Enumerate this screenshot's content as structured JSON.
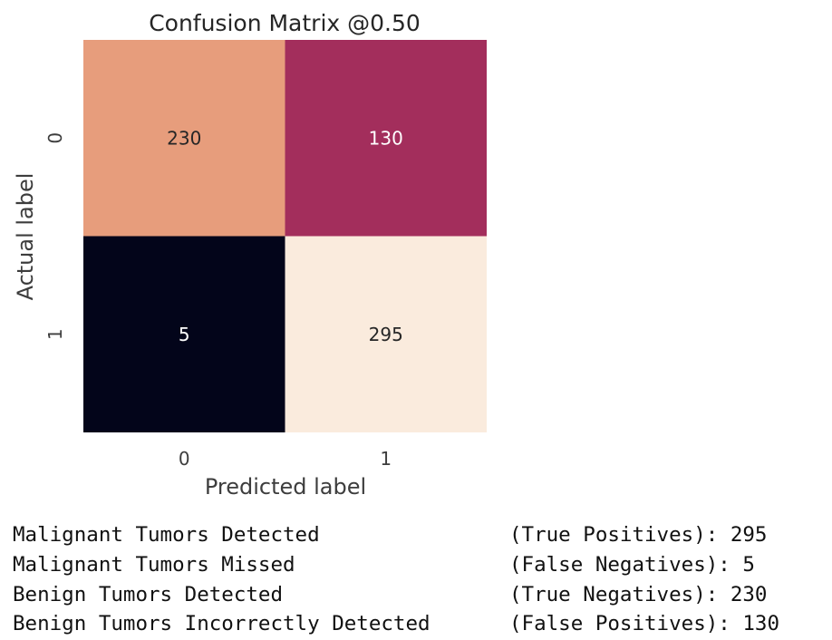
{
  "chart_data": {
    "type": "heatmap",
    "title": "Confusion Matrix @0.50",
    "xlabel": "Predicted label",
    "ylabel": "Actual label",
    "x_categories": [
      "0",
      "1"
    ],
    "y_categories": [
      "0",
      "1"
    ],
    "values": [
      [
        230,
        130
      ],
      [
        5,
        295
      ]
    ],
    "colorbar": false,
    "colors": {
      "low": "#03051a",
      "mid": "#a12a5b",
      "midhigh": "#e69775",
      "high": "#faebdd"
    }
  },
  "summary": [
    {
      "description": "Malignant Tumors Detected",
      "metric": "(True Positives):",
      "value": "295"
    },
    {
      "description": "Malignant Tumors Missed",
      "metric": "(False Negatives):",
      "value": "5"
    },
    {
      "description": "Benign Tumors Detected",
      "metric": "(True Negatives):",
      "value": "230"
    },
    {
      "description": "Benign Tumors Incorrectly Detected",
      "metric": "(False Positives):",
      "value": "130"
    }
  ]
}
